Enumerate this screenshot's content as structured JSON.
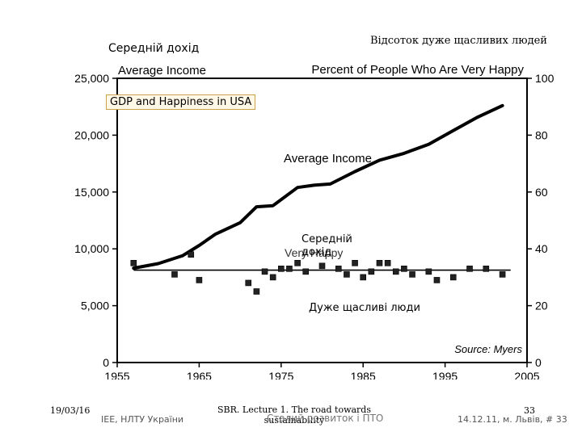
{
  "overlays": {
    "avg_income_ua": "Середній дохід",
    "happy_percent_ua": "Відсоток дуже щасливих людей",
    "gdp_box": "GDP and Happiness in USA",
    "mid_income_ua": "Середній дохід",
    "very_happy_ua": "Дуже щасливі люди"
  },
  "footer": {
    "date": "19/03/16",
    "source": "IEE, НЛТУ України",
    "lecture": "SBR. Lecture 1. The road towards sustainability",
    "subtitle": "Сталий розвиток і ПТО",
    "page": "33",
    "place_date": "14.12.11, м. Львів, # 33"
  },
  "chart_data": {
    "type": "line",
    "left_title": "Average Income",
    "right_title": "Percent of People Who Are Very Happy",
    "source": "Source: Myers",
    "x_ticks": [
      "1955",
      "1965",
      "1975",
      "1985",
      "1995",
      "2005"
    ],
    "y_left_ticks": [
      "0",
      "5,000",
      "10,000",
      "15,000",
      "20,000",
      "25,000"
    ],
    "y_right_ticks": [
      "0",
      "20",
      "40",
      "60",
      "80",
      "100"
    ],
    "xlim": [
      1955,
      2005
    ],
    "ylim_left": [
      0,
      25000
    ],
    "ylim_right": [
      0,
      100
    ],
    "series": [
      {
        "name": "Average Income",
        "label": "Average Income",
        "axis": "left",
        "x": [
          1957,
          1960,
          1963,
          1965,
          1967,
          1970,
          1972,
          1974,
          1977,
          1979,
          1981,
          1984,
          1987,
          1990,
          1993,
          1996,
          1999,
          2002
        ],
        "y": [
          8300,
          8700,
          9400,
          10300,
          11300,
          12300,
          13700,
          13800,
          15400,
          15600,
          15700,
          16800,
          17800,
          18400,
          19200,
          20400,
          21600,
          22600
        ]
      },
      {
        "name": "Very Happy",
        "label": "Very Happy",
        "axis": "right",
        "x": [
          1957,
          1962,
          1964,
          1965,
          1971,
          1972,
          1973,
          1974,
          1975,
          1976,
          1977,
          1978,
          1980,
          1982,
          1983,
          1984,
          1985,
          1986,
          1987,
          1988,
          1989,
          1990,
          1991,
          1993,
          1994,
          1996,
          1998,
          2000,
          2002
        ],
        "y": [
          35,
          31,
          38,
          29,
          28,
          25,
          32,
          30,
          33,
          33,
          35,
          32,
          34,
          33,
          31,
          35,
          30,
          32,
          35,
          35,
          32,
          33,
          31,
          32,
          29,
          30,
          33,
          33,
          31
        ]
      }
    ],
    "trend": {
      "name": "Very Happy trend",
      "axis": "right",
      "x": [
        1957,
        2003
      ],
      "y": [
        32.5,
        32.5
      ]
    }
  }
}
